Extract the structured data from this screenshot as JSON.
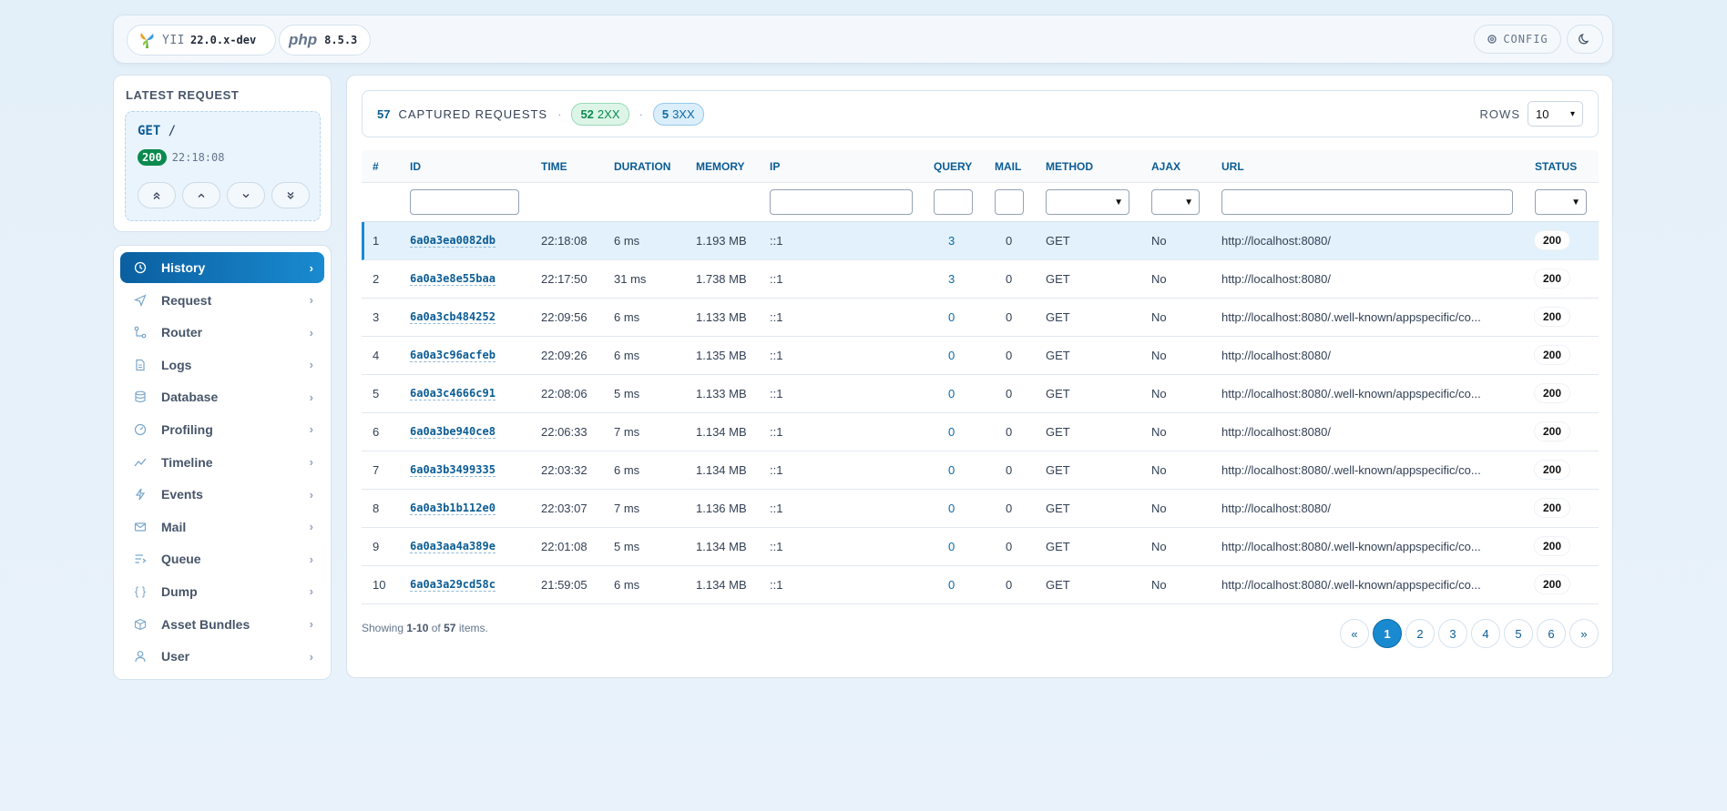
{
  "topbar": {
    "framework_name": "YII",
    "framework_version": "22.0.x-dev",
    "php_logo": "php",
    "php_version": "8.5.3",
    "config_label": "CONFIG"
  },
  "latest": {
    "title": "LATEST REQUEST",
    "method": "GET",
    "path": "/",
    "status": "200",
    "time": "22:18:08"
  },
  "sidebar": {
    "items": [
      {
        "label": "History",
        "icon": "history-icon"
      },
      {
        "label": "Request",
        "icon": "send-icon"
      },
      {
        "label": "Router",
        "icon": "route-icon"
      },
      {
        "label": "Logs",
        "icon": "file-icon"
      },
      {
        "label": "Database",
        "icon": "database-icon"
      },
      {
        "label": "Profiling",
        "icon": "gauge-icon"
      },
      {
        "label": "Timeline",
        "icon": "trend-icon"
      },
      {
        "label": "Events",
        "icon": "bolt-icon"
      },
      {
        "label": "Mail",
        "icon": "mail-icon"
      },
      {
        "label": "Queue",
        "icon": "queue-icon"
      },
      {
        "label": "Dump",
        "icon": "braces-icon"
      },
      {
        "label": "Asset Bundles",
        "icon": "package-icon"
      },
      {
        "label": "User",
        "icon": "user-icon"
      }
    ]
  },
  "summary": {
    "count": "57",
    "captured_label": "CAPTURED REQUESTS",
    "sep": "·",
    "c2xx": "52",
    "l2xx": "2XX",
    "c3xx": "5",
    "l3xx": "3XX",
    "rows_label": "ROWS",
    "rows_value": "10"
  },
  "table": {
    "headers": {
      "num": "#",
      "id": "ID",
      "time": "TIME",
      "duration": "DURATION",
      "memory": "MEMORY",
      "ip": "IP",
      "query": "QUERY",
      "mail": "MAIL",
      "method": "METHOD",
      "ajax": "AJAX",
      "url": "URL",
      "status": "STATUS"
    },
    "rows": [
      {
        "n": "1",
        "id": "6a0a3ea0082db",
        "time": "22:18:08",
        "duration": "6 ms",
        "memory": "1.193 MB",
        "ip": "::1",
        "query": "3",
        "mail": "0",
        "method": "GET",
        "ajax": "No",
        "url": "http://localhost:8080/",
        "status": "200"
      },
      {
        "n": "2",
        "id": "6a0a3e8e55baa",
        "time": "22:17:50",
        "duration": "31 ms",
        "memory": "1.738 MB",
        "ip": "::1",
        "query": "3",
        "mail": "0",
        "method": "GET",
        "ajax": "No",
        "url": "http://localhost:8080/",
        "status": "200"
      },
      {
        "n": "3",
        "id": "6a0a3cb484252",
        "time": "22:09:56",
        "duration": "6 ms",
        "memory": "1.133 MB",
        "ip": "::1",
        "query": "0",
        "mail": "0",
        "method": "GET",
        "ajax": "No",
        "url": "http://localhost:8080/.well-known/appspecific/co...",
        "status": "200"
      },
      {
        "n": "4",
        "id": "6a0a3c96acfeb",
        "time": "22:09:26",
        "duration": "6 ms",
        "memory": "1.135 MB",
        "ip": "::1",
        "query": "0",
        "mail": "0",
        "method": "GET",
        "ajax": "No",
        "url": "http://localhost:8080/",
        "status": "200"
      },
      {
        "n": "5",
        "id": "6a0a3c4666c91",
        "time": "22:08:06",
        "duration": "5 ms",
        "memory": "1.133 MB",
        "ip": "::1",
        "query": "0",
        "mail": "0",
        "method": "GET",
        "ajax": "No",
        "url": "http://localhost:8080/.well-known/appspecific/co...",
        "status": "200"
      },
      {
        "n": "6",
        "id": "6a0a3be940ce8",
        "time": "22:06:33",
        "duration": "7 ms",
        "memory": "1.134 MB",
        "ip": "::1",
        "query": "0",
        "mail": "0",
        "method": "GET",
        "ajax": "No",
        "url": "http://localhost:8080/",
        "status": "200"
      },
      {
        "n": "7",
        "id": "6a0a3b3499335",
        "time": "22:03:32",
        "duration": "6 ms",
        "memory": "1.134 MB",
        "ip": "::1",
        "query": "0",
        "mail": "0",
        "method": "GET",
        "ajax": "No",
        "url": "http://localhost:8080/.well-known/appspecific/co...",
        "status": "200"
      },
      {
        "n": "8",
        "id": "6a0a3b1b112e0",
        "time": "22:03:07",
        "duration": "7 ms",
        "memory": "1.136 MB",
        "ip": "::1",
        "query": "0",
        "mail": "0",
        "method": "GET",
        "ajax": "No",
        "url": "http://localhost:8080/",
        "status": "200"
      },
      {
        "n": "9",
        "id": "6a0a3aa4a389e",
        "time": "22:01:08",
        "duration": "5 ms",
        "memory": "1.134 MB",
        "ip": "::1",
        "query": "0",
        "mail": "0",
        "method": "GET",
        "ajax": "No",
        "url": "http://localhost:8080/.well-known/appspecific/co...",
        "status": "200"
      },
      {
        "n": "10",
        "id": "6a0a3a29cd58c",
        "time": "21:59:05",
        "duration": "6 ms",
        "memory": "1.134 MB",
        "ip": "::1",
        "query": "0",
        "mail": "0",
        "method": "GET",
        "ajax": "No",
        "url": "http://localhost:8080/.well-known/appspecific/co...",
        "status": "200"
      }
    ]
  },
  "footer": {
    "showing_prefix": "Showing",
    "range": "1-10",
    "of": "of",
    "total": "57",
    "suffix": "items.",
    "pages": [
      "«",
      "1",
      "2",
      "3",
      "4",
      "5",
      "6",
      "»"
    ],
    "current_page": "1"
  },
  "colors": {
    "accent": "#1a8ad0",
    "success": "#0a8a4f"
  }
}
